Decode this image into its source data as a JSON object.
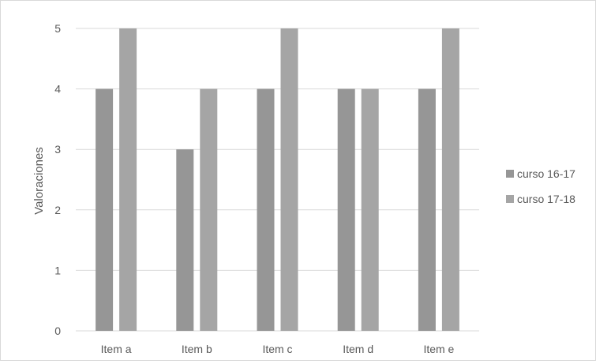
{
  "chart_data": {
    "type": "bar",
    "categories": [
      "Item a",
      "Item b",
      "Item c",
      "Item d",
      "Item e"
    ],
    "series": [
      {
        "name": "curso 16-17",
        "values": [
          4,
          3,
          4,
          4,
          4
        ],
        "color": "#969696"
      },
      {
        "name": "curso 17-18",
        "values": [
          5,
          4,
          5,
          4,
          5
        ],
        "color": "#a5a5a5"
      }
    ],
    "xlabel": "",
    "ylabel": "Valoraciones",
    "ylim": [
      0,
      5
    ],
    "yticks": [
      "0",
      "1",
      "2",
      "3",
      "4",
      "5"
    ],
    "grid": true,
    "legend_position": "right"
  },
  "colors": {
    "gridline": "#d9d9d9",
    "text": "#595959"
  }
}
